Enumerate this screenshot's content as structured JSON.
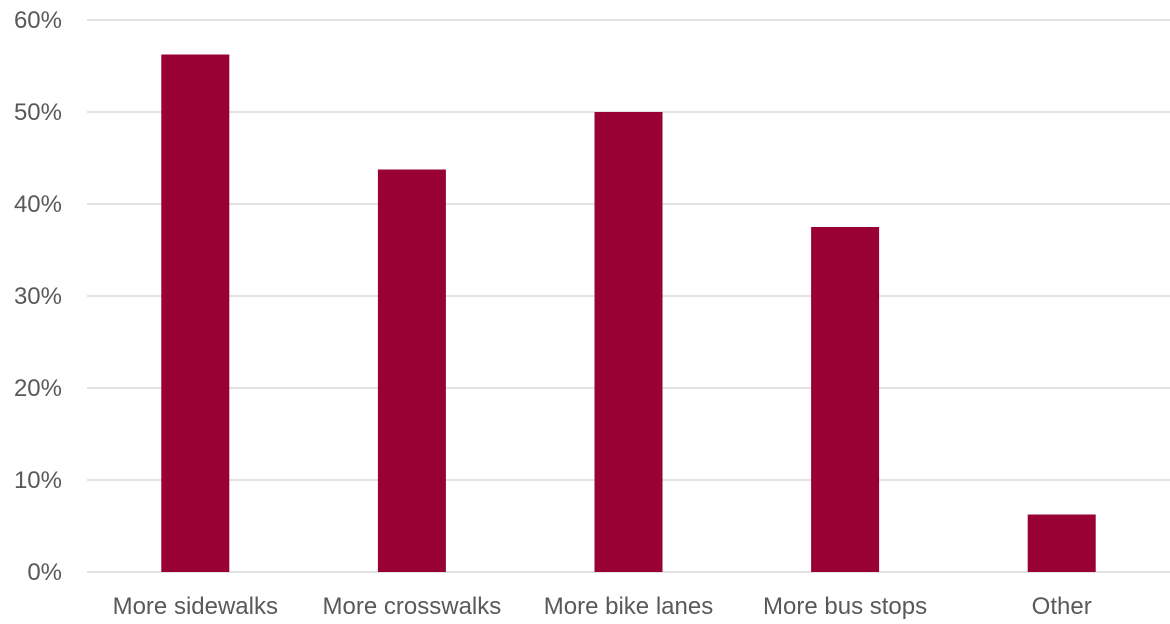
{
  "chart_data": {
    "type": "bar",
    "title": "",
    "xlabel": "",
    "ylabel": "",
    "categories": [
      "More sidewalks",
      "More crosswalks",
      "More bike lanes",
      "More bus stops",
      "Other"
    ],
    "values": [
      56.25,
      43.75,
      50.0,
      37.5,
      6.25
    ],
    "ylim": [
      0,
      60
    ],
    "yticks": [
      0,
      10,
      20,
      30,
      40,
      50,
      60
    ],
    "ytick_labels": [
      "0%",
      "10%",
      "20%",
      "30%",
      "40%",
      "50%",
      "60%"
    ],
    "grid": true,
    "legend": "none",
    "bar_color": "#990033"
  }
}
